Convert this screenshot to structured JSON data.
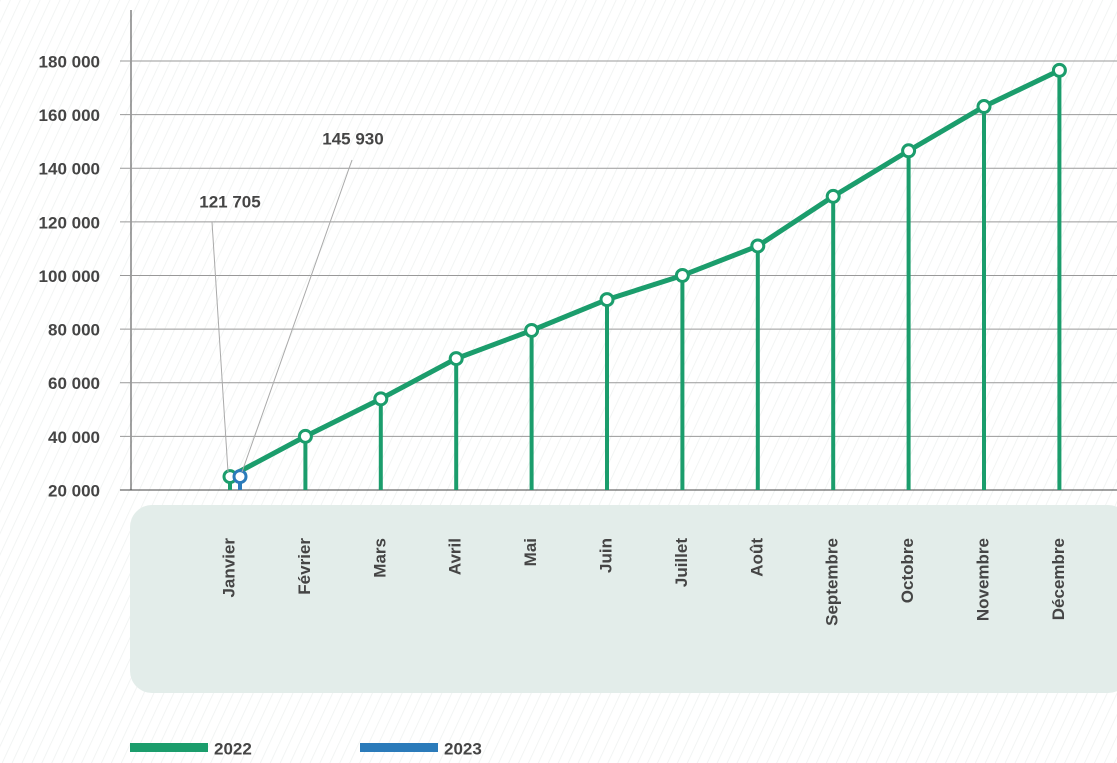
{
  "chart_data": {
    "type": "line",
    "categories": [
      "Janvier",
      "Février",
      "Mars",
      "Avril",
      "Mai",
      "Juin",
      "Juillet",
      "Août",
      "Septembre",
      "Octobre",
      "Novembre",
      "Décembre"
    ],
    "series": [
      {
        "name": "2022",
        "color": "#1b9d6c",
        "values": [
          25000,
          40000,
          54000,
          69000,
          79500,
          91000,
          100000,
          111000,
          129500,
          146500,
          163000,
          176500
        ]
      },
      {
        "name": "2023",
        "color": "#2b7bba",
        "values": [
          25000,
          null,
          null,
          null,
          null,
          null,
          null,
          null,
          null,
          null,
          null,
          null
        ]
      }
    ],
    "annotations": [
      "121 705",
      "145 930"
    ],
    "ylim": [
      20000,
      199000
    ],
    "yticks": [
      {
        "value": 20000,
        "label": "20 000"
      },
      {
        "value": 40000,
        "label": "40 000"
      },
      {
        "value": 60000,
        "label": "60 000"
      },
      {
        "value": 80000,
        "label": "80 000"
      },
      {
        "value": 100000,
        "label": "100 000"
      },
      {
        "value": 120000,
        "label": "120 000"
      },
      {
        "value": 140000,
        "label": "140 000"
      },
      {
        "value": 160000,
        "label": "160 000"
      },
      {
        "value": 180000,
        "label": "180 000"
      }
    ],
    "grid": true
  }
}
